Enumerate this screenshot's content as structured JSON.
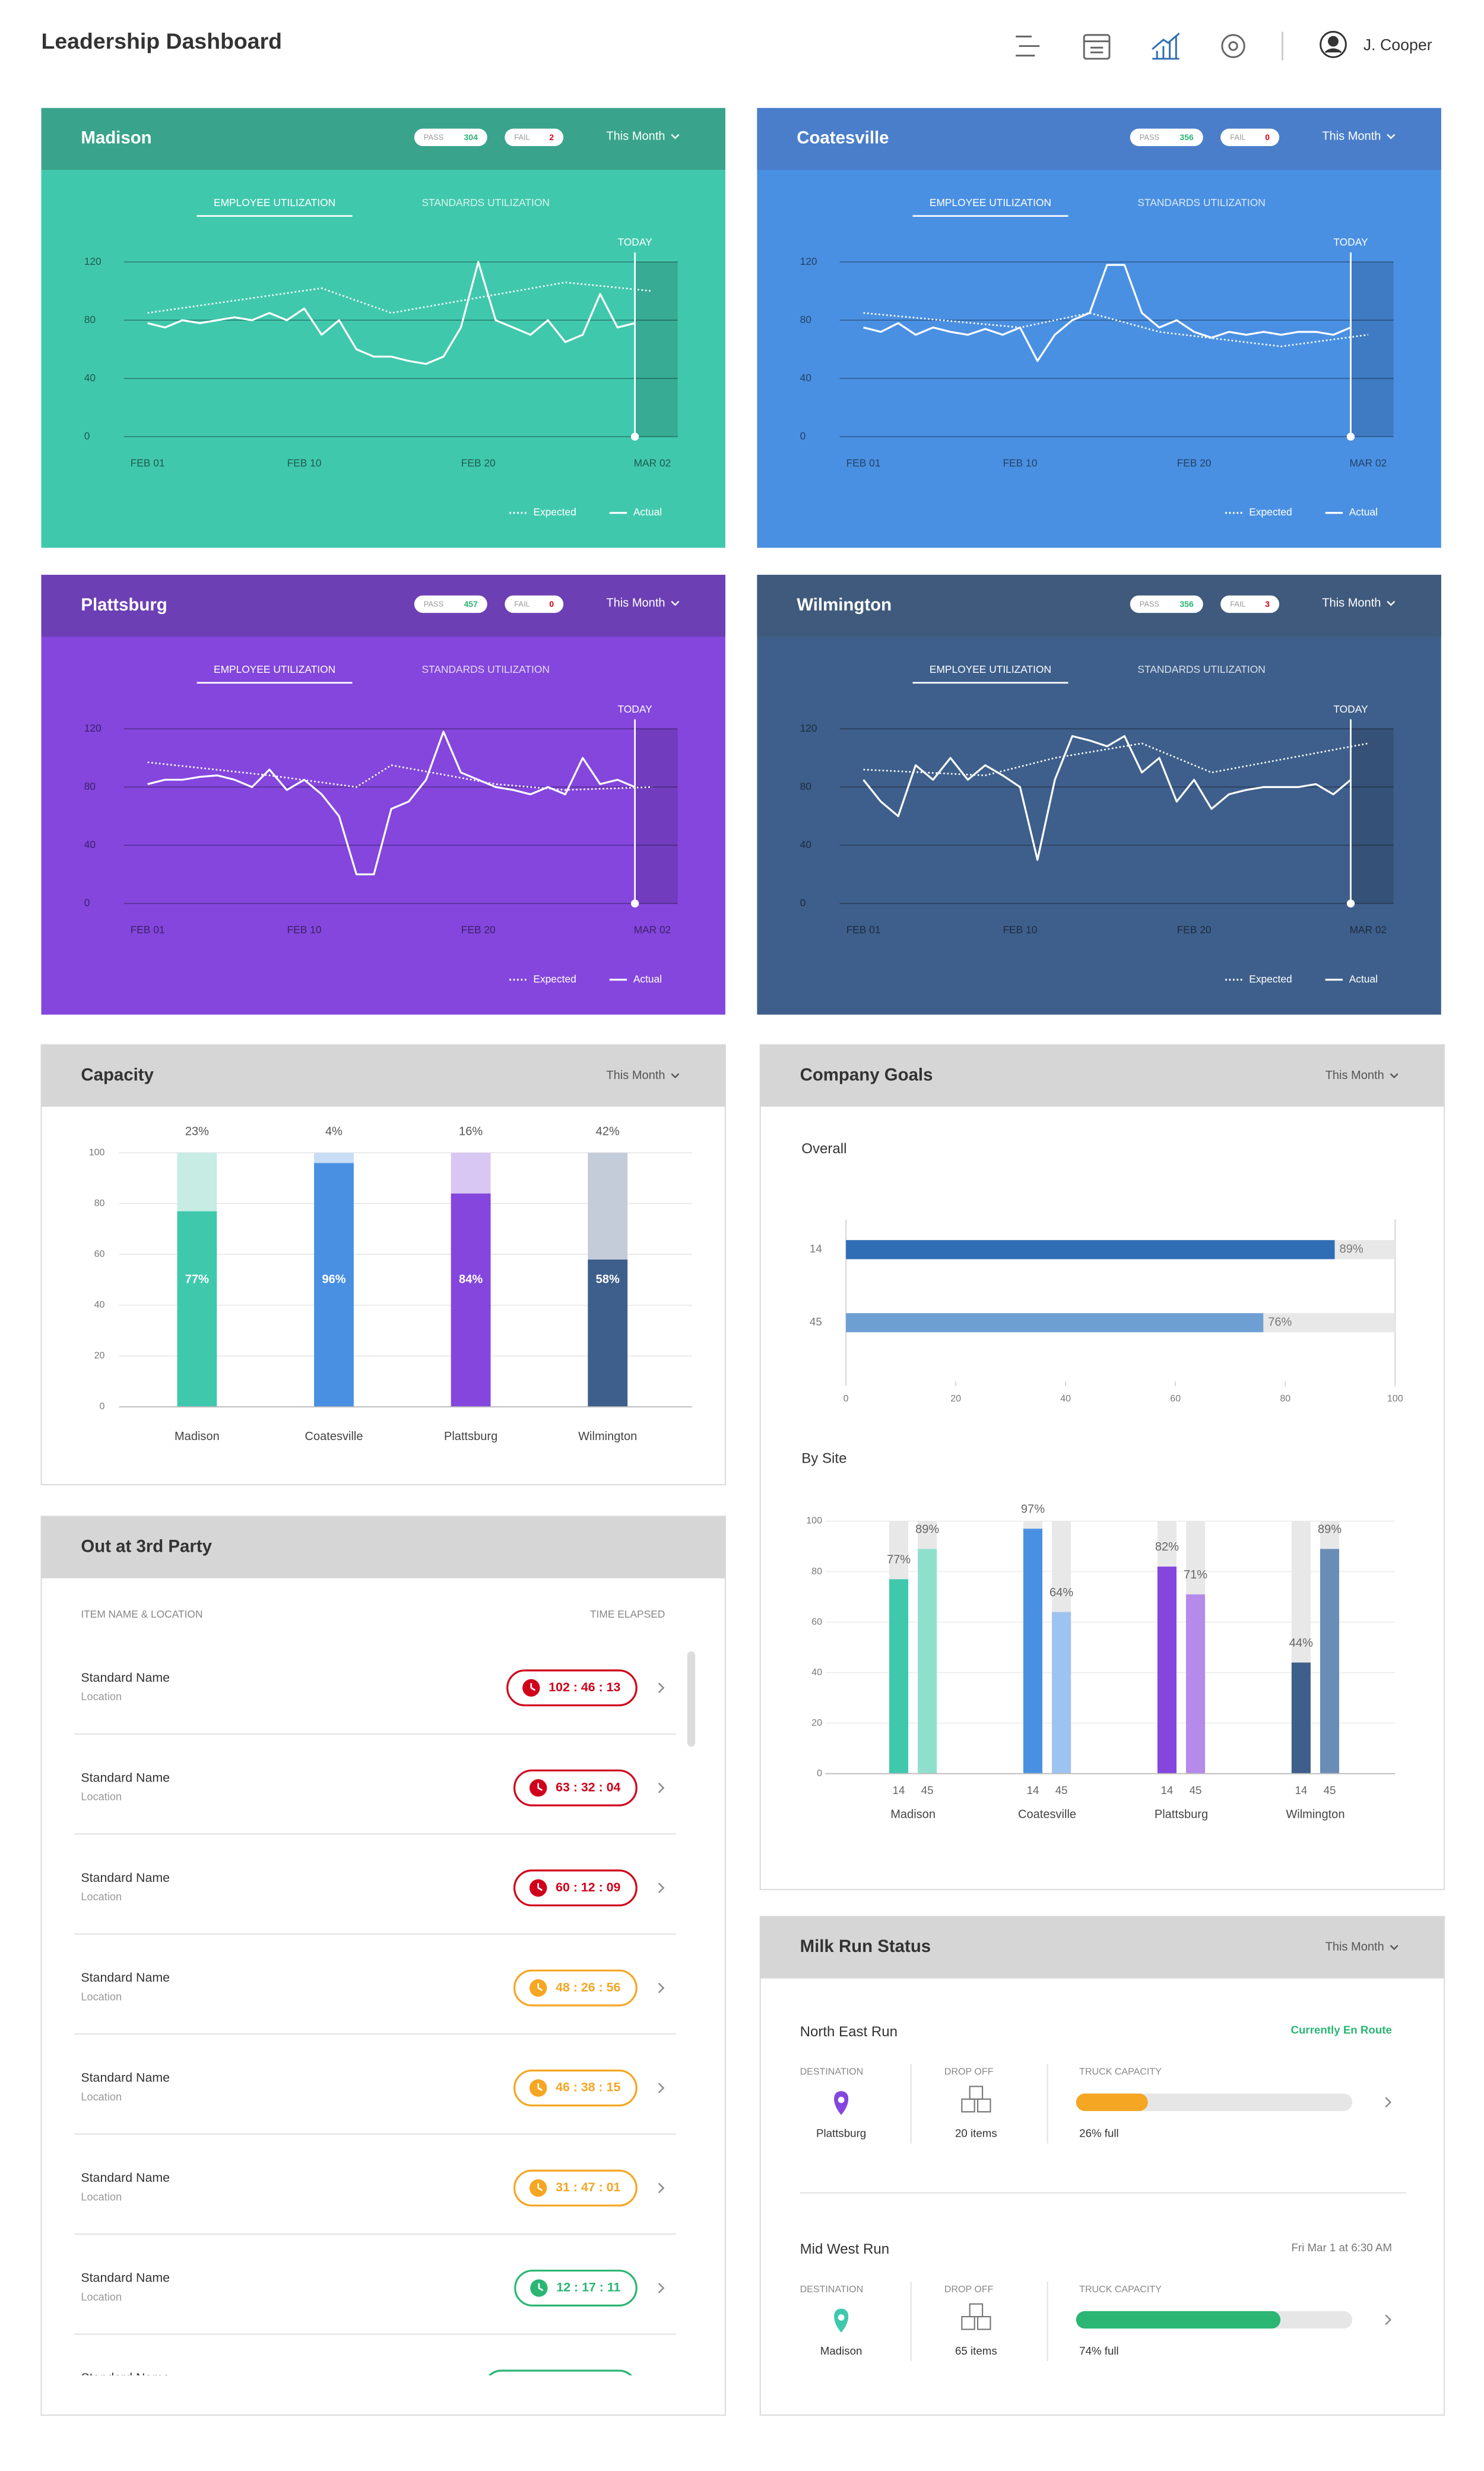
{
  "header": {
    "title": "Leadership Dashboard",
    "user": "J. Cooper"
  },
  "chart_data": [
    {
      "type": "line",
      "title": "Madison",
      "pass_label": "PASS",
      "pass": 304,
      "fail_label": "FAIL",
      "fail": 2,
      "period": "This Month",
      "tabs": [
        "EMPLOYEE UTILIZATION",
        "STANDARDS UTILIZATION"
      ],
      "today_label": "TODAY",
      "today": 28,
      "header_color": "#39a48b",
      "color": "#40c8ad",
      "xlim": [
        0,
        29
      ],
      "xticks": [
        {
          "value": 0,
          "label": "FEB 01"
        },
        {
          "value": 9,
          "label": "FEB 10"
        },
        {
          "value": 19,
          "label": "FEB 20"
        },
        {
          "value": 29,
          "label": "MAR 02"
        }
      ],
      "ylim": [
        0,
        120
      ],
      "yticks": [
        0,
        40,
        80,
        120
      ],
      "series": [
        {
          "name": "Expected",
          "style": "dotted",
          "x": [
            0,
            10,
            14,
            24,
            29
          ],
          "values": [
            85,
            102,
            85,
            106,
            100
          ]
        },
        {
          "name": "Actual",
          "style": "solid",
          "x": [
            0,
            1,
            2,
            3,
            4,
            5,
            6,
            7,
            8,
            9,
            10,
            11,
            12,
            13,
            14,
            15,
            16,
            17,
            18,
            19,
            20,
            21,
            22,
            23,
            24,
            25,
            26,
            27,
            28
          ],
          "values": [
            78,
            75,
            80,
            78,
            80,
            82,
            80,
            85,
            80,
            88,
            70,
            80,
            60,
            55,
            55,
            52,
            50,
            55,
            75,
            120,
            80,
            75,
            70,
            80,
            65,
            70,
            98,
            75,
            78
          ]
        }
      ]
    },
    {
      "type": "line",
      "title": "Coatesville",
      "pass_label": "PASS",
      "pass": 356,
      "fail_label": "FAIL",
      "fail": 0,
      "period": "This Month",
      "tabs": [
        "EMPLOYEE UTILIZATION",
        "STANDARDS UTILIZATION"
      ],
      "today_label": "TODAY",
      "today": 28,
      "header_color": "#4a7ecb",
      "color": "#4a90e2",
      "xlim": [
        0,
        29
      ],
      "xticks": [
        {
          "value": 0,
          "label": "FEB 01"
        },
        {
          "value": 9,
          "label": "FEB 10"
        },
        {
          "value": 19,
          "label": "FEB 20"
        },
        {
          "value": 29,
          "label": "MAR 02"
        }
      ],
      "ylim": [
        0,
        120
      ],
      "yticks": [
        0,
        40,
        80,
        120
      ],
      "series": [
        {
          "name": "Expected",
          "style": "dotted",
          "x": [
            0,
            9,
            13,
            17,
            24,
            29
          ],
          "values": [
            85,
            75,
            85,
            72,
            62,
            70
          ]
        },
        {
          "name": "Actual",
          "style": "solid",
          "x": [
            0,
            1,
            2,
            3,
            4,
            5,
            6,
            7,
            8,
            9,
            10,
            11,
            12,
            13,
            14,
            15,
            16,
            17,
            18,
            19,
            20,
            21,
            22,
            23,
            24,
            25,
            26,
            27,
            28
          ],
          "values": [
            75,
            72,
            78,
            70,
            75,
            72,
            70,
            74,
            70,
            75,
            52,
            70,
            80,
            85,
            118,
            118,
            85,
            75,
            80,
            72,
            68,
            72,
            70,
            72,
            70,
            72,
            72,
            70,
            75
          ]
        }
      ]
    },
    {
      "type": "line",
      "title": "Plattsburg",
      "pass_label": "PASS",
      "pass": 457,
      "fail_label": "FAIL",
      "fail": 0,
      "period": "This Month",
      "tabs": [
        "EMPLOYEE UTILIZATION",
        "STANDARDS UTILIZATION"
      ],
      "today_label": "TODAY",
      "today": 28,
      "header_color": "#6c3fb4",
      "color": "#8446dd",
      "xlim": [
        0,
        29
      ],
      "xticks": [
        {
          "value": 0,
          "label": "FEB 01"
        },
        {
          "value": 9,
          "label": "FEB 10"
        },
        {
          "value": 19,
          "label": "FEB 20"
        },
        {
          "value": 29,
          "label": "MAR 02"
        }
      ],
      "ylim": [
        0,
        120
      ],
      "yticks": [
        0,
        40,
        80,
        120
      ],
      "series": [
        {
          "name": "Expected",
          "style": "dotted",
          "x": [
            0,
            7,
            12,
            14,
            20,
            24,
            29
          ],
          "values": [
            97,
            88,
            80,
            95,
            82,
            78,
            80
          ]
        },
        {
          "name": "Actual",
          "style": "solid",
          "x": [
            0,
            1,
            2,
            3,
            4,
            5,
            6,
            7,
            8,
            9,
            10,
            11,
            12,
            13,
            14,
            15,
            16,
            17,
            18,
            19,
            20,
            21,
            22,
            23,
            24,
            25,
            26,
            27,
            28
          ],
          "values": [
            82,
            85,
            85,
            87,
            88,
            85,
            80,
            92,
            78,
            85,
            75,
            60,
            20,
            20,
            65,
            70,
            85,
            118,
            90,
            85,
            80,
            78,
            75,
            80,
            75,
            100,
            82,
            85,
            80
          ]
        }
      ]
    },
    {
      "type": "line",
      "title": "Wilmington",
      "pass_label": "PASS",
      "pass": 356,
      "fail_label": "FAIL",
      "fail": 3,
      "period": "This Month",
      "tabs": [
        "EMPLOYEE UTILIZATION",
        "STANDARDS UTILIZATION"
      ],
      "today_label": "TODAY",
      "today": 28,
      "header_color": "#3f5a7c",
      "color": "#3e5f8b",
      "xlim": [
        0,
        29
      ],
      "xticks": [
        {
          "value": 0,
          "label": "FEB 01"
        },
        {
          "value": 9,
          "label": "FEB 10"
        },
        {
          "value": 19,
          "label": "FEB 20"
        },
        {
          "value": 29,
          "label": "MAR 02"
        }
      ],
      "ylim": [
        0,
        120
      ],
      "yticks": [
        0,
        40,
        80,
        120
      ],
      "series": [
        {
          "name": "Expected",
          "style": "dotted",
          "x": [
            0,
            7,
            11,
            16,
            20,
            29
          ],
          "values": [
            92,
            88,
            100,
            110,
            90,
            110
          ]
        },
        {
          "name": "Actual",
          "style": "solid",
          "x": [
            0,
            1,
            2,
            3,
            4,
            5,
            6,
            7,
            8,
            9,
            10,
            11,
            12,
            13,
            14,
            15,
            16,
            17,
            18,
            19,
            20,
            21,
            22,
            23,
            24,
            25,
            26,
            27,
            28
          ],
          "values": [
            85,
            70,
            60,
            95,
            85,
            100,
            85,
            95,
            88,
            80,
            30,
            85,
            115,
            112,
            108,
            115,
            90,
            100,
            70,
            85,
            65,
            75,
            78,
            80,
            80,
            80,
            82,
            75,
            85
          ]
        }
      ]
    },
    {
      "type": "stacked-bar",
      "title": "Capacity",
      "period": "This Month",
      "categories": [
        "Madison",
        "Coatesville",
        "Plattsburg",
        "Wilmington"
      ],
      "ylim": [
        0,
        100
      ],
      "yticks": [
        0,
        20,
        40,
        60,
        80,
        100
      ],
      "series": [
        {
          "values": [
            77,
            96,
            84,
            58
          ],
          "value_labels": [
            "77%",
            "96%",
            "84%",
            "58%"
          ],
          "colors": [
            "#40c8ad",
            "#4a90e2",
            "#8446dd",
            "#3e5f8b"
          ]
        },
        {
          "values": [
            23,
            4,
            16,
            42
          ],
          "value_labels": [
            "23%",
            "4%",
            "16%",
            "42%"
          ],
          "colors": [
            "#c6ece4",
            "#c8dcf5",
            "#d9c7f3",
            "#c3ccd8"
          ]
        }
      ]
    },
    {
      "type": "hbar",
      "title": "Company Goals",
      "period": "This Month",
      "subtitle": "Overall",
      "categories": [
        "14",
        "45"
      ],
      "values": [
        89,
        76
      ],
      "value_labels": [
        "89%",
        "76%"
      ],
      "colors": [
        "#2f6db5",
        "#6d9fd3"
      ],
      "xlim": [
        0,
        100
      ],
      "xticks": [
        0,
        20,
        40,
        60,
        80,
        100
      ]
    },
    {
      "type": "grouped-bar",
      "subtitle": "By Site",
      "categories": [
        "Madison",
        "Coatesville",
        "Plattsburg",
        "Wilmington"
      ],
      "ylim": [
        0,
        100
      ],
      "yticks": [
        0,
        20,
        40,
        60,
        80,
        100
      ],
      "series": [
        {
          "name": "14",
          "values": [
            77,
            97,
            82,
            44
          ],
          "value_labels": [
            "77%",
            "97%",
            "82%",
            "44%"
          ],
          "colors": [
            "#40c8ad",
            "#4a90e2",
            "#8446dd",
            "#3e5f8b"
          ]
        },
        {
          "name": "45",
          "values": [
            89,
            64,
            71,
            89
          ],
          "value_labels": [
            "89%",
            "64%",
            "71%",
            "89%"
          ],
          "colors": [
            "#8ee0cd",
            "#9dc3f0",
            "#b58aea",
            "#6a8db8"
          ]
        }
      ]
    }
  ],
  "third_party": {
    "title": "Out at 3rd Party",
    "columns": [
      "ITEM NAME & LOCATION",
      "TIME ELAPSED"
    ],
    "rows": [
      {
        "name": "Standard Name",
        "location": "Location",
        "time": "102 : 46 : 13",
        "status": "#d0021b"
      },
      {
        "name": "Standard Name",
        "location": "Location",
        "time": "63 : 32 : 04",
        "status": "#d0021b"
      },
      {
        "name": "Standard Name",
        "location": "Location",
        "time": "60 : 12 : 09",
        "status": "#d0021b"
      },
      {
        "name": "Standard Name",
        "location": "Location",
        "time": "48 : 26 : 56",
        "status": "#f5a623"
      },
      {
        "name": "Standard Name",
        "location": "Location",
        "time": "46 : 38 : 15",
        "status": "#f5a623"
      },
      {
        "name": "Standard Name",
        "location": "Location",
        "time": "31 : 47 : 01",
        "status": "#f5a623"
      },
      {
        "name": "Standard Name",
        "location": "Location",
        "time": "12 : 17 : 11",
        "status": "#2bb673"
      },
      {
        "name": "Standard Name",
        "status": "#2bb673"
      }
    ]
  },
  "milk_run": {
    "title": "Milk Run Status",
    "period": "This Month",
    "runs": [
      {
        "name": "North East Run",
        "status": "Currently En Route",
        "status_color": "#2bb673",
        "destination_label": "DESTINATION",
        "destination": "Plattsburg",
        "pin_color": "#8446dd",
        "dropoff_label": "DROP OFF",
        "dropoff": "20 items",
        "capacity_label": "TRUCK CAPACITY",
        "capacity": 26,
        "capacity_text": "26% full",
        "color": "#f5a623"
      },
      {
        "name": "Mid West Run",
        "status": "Fri Mar 1 at 6:30 AM",
        "status_color": "#777777",
        "destination_label": "DESTINATION",
        "destination": "Madison",
        "pin_color": "#40c8ad",
        "dropoff_label": "DROP OFF",
        "dropoff": "65 items",
        "capacity_label": "TRUCK CAPACITY",
        "capacity": 74,
        "capacity_text": "74% full",
        "color": "#2bb673"
      }
    ]
  }
}
